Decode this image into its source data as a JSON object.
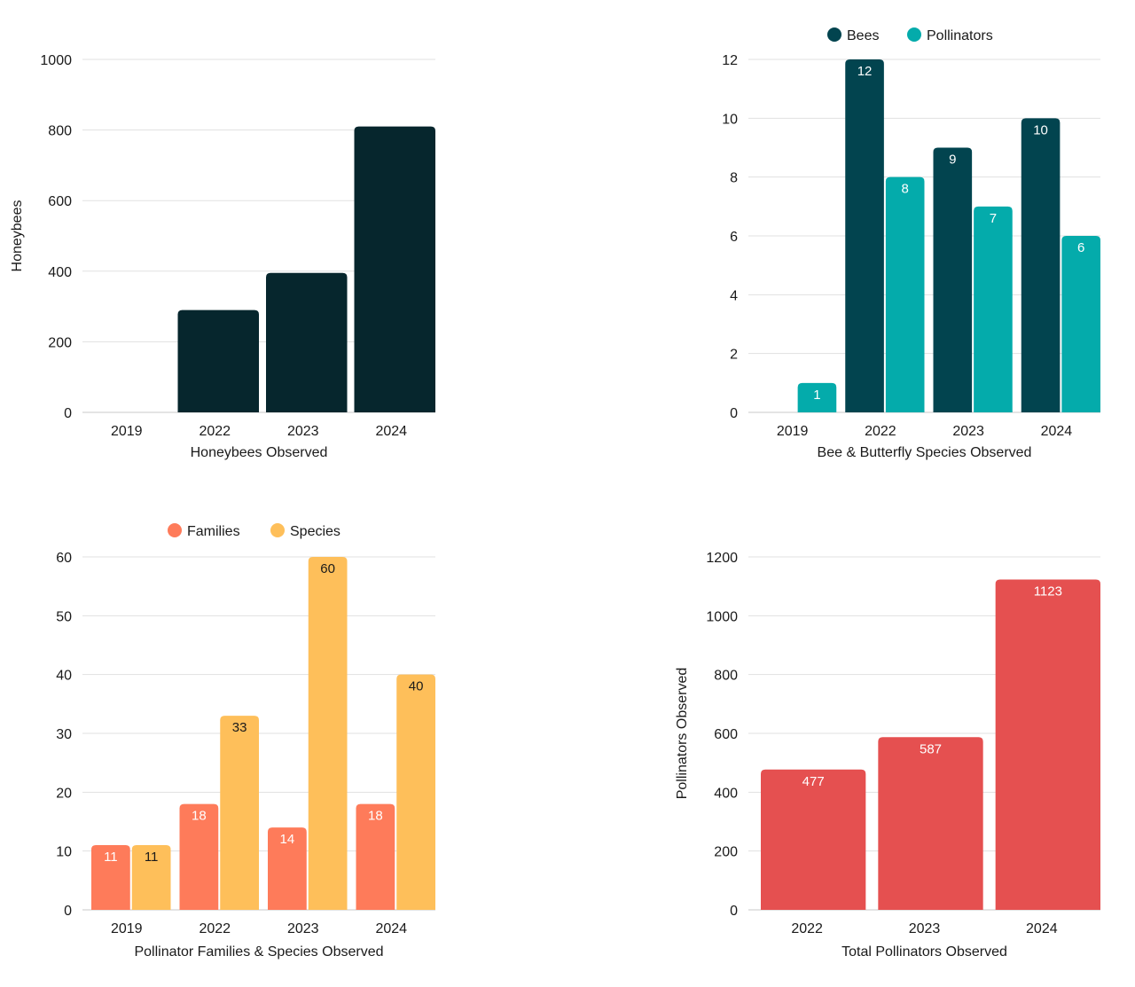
{
  "chart_data": [
    {
      "type": "bar",
      "title": "Honeybees Observed",
      "xlabel": "Honeybees Observed",
      "ylabel": "Honeybees",
      "categories": [
        "2019",
        "2022",
        "2023",
        "2024"
      ],
      "series": [
        {
          "name": "Honeybees",
          "color": "#06262d",
          "label_color": "#ffffff",
          "show_labels": false,
          "values": [
            0,
            290,
            395,
            810
          ]
        }
      ],
      "ylim": [
        0,
        1000
      ],
      "yticks": [
        0,
        200,
        400,
        600,
        800,
        1000
      ],
      "grid": true,
      "legend": "none"
    },
    {
      "type": "bar",
      "title": "Bee & Butterfly Species Observed",
      "xlabel": "Bee & Butterfly Species Observed",
      "ylabel": "",
      "categories": [
        "2019",
        "2022",
        "2023",
        "2024"
      ],
      "series": [
        {
          "name": "Bees",
          "color": "#02444f",
          "label_color": "#ffffff",
          "show_labels": true,
          "values": [
            0,
            12,
            9,
            10
          ]
        },
        {
          "name": "Pollinators",
          "color": "#04abab",
          "label_color": "#ffffff",
          "show_labels": true,
          "values": [
            1,
            8,
            7,
            6
          ]
        }
      ],
      "ylim": [
        0,
        12
      ],
      "yticks": [
        0,
        2,
        4,
        6,
        8,
        10,
        12
      ],
      "grid": true,
      "legend": "top-right"
    },
    {
      "type": "bar",
      "title": "Pollinator Families & Species Observed",
      "xlabel": "Pollinator Families & Species Observed",
      "ylabel": "",
      "categories": [
        "2019",
        "2022",
        "2023",
        "2024"
      ],
      "series": [
        {
          "name": "Families",
          "color": "#fe7b5a",
          "label_color": "#ffffff",
          "show_labels": true,
          "values": [
            11,
            18,
            14,
            18
          ]
        },
        {
          "name": "Species",
          "color": "#febf5a",
          "label_color": "#1a1a1a",
          "show_labels": true,
          "values": [
            11,
            33,
            60,
            40
          ]
        }
      ],
      "ylim": [
        0,
        60
      ],
      "yticks": [
        0,
        10,
        20,
        30,
        40,
        50,
        60
      ],
      "grid": true,
      "legend": "top-left"
    },
    {
      "type": "bar",
      "title": "Total Pollinators Observed",
      "xlabel": "Total Pollinators Observed",
      "ylabel": "Pollinators Observed",
      "categories": [
        "2022",
        "2023",
        "2024"
      ],
      "series": [
        {
          "name": "Pollinators Observed",
          "color": "#e55050",
          "label_color": "#ffffff",
          "show_labels": true,
          "values": [
            477,
            587,
            1123
          ]
        }
      ],
      "ylim": [
        0,
        1200
      ],
      "yticks": [
        0,
        200,
        400,
        600,
        800,
        1000,
        1200
      ],
      "grid": true,
      "legend": "none"
    }
  ]
}
